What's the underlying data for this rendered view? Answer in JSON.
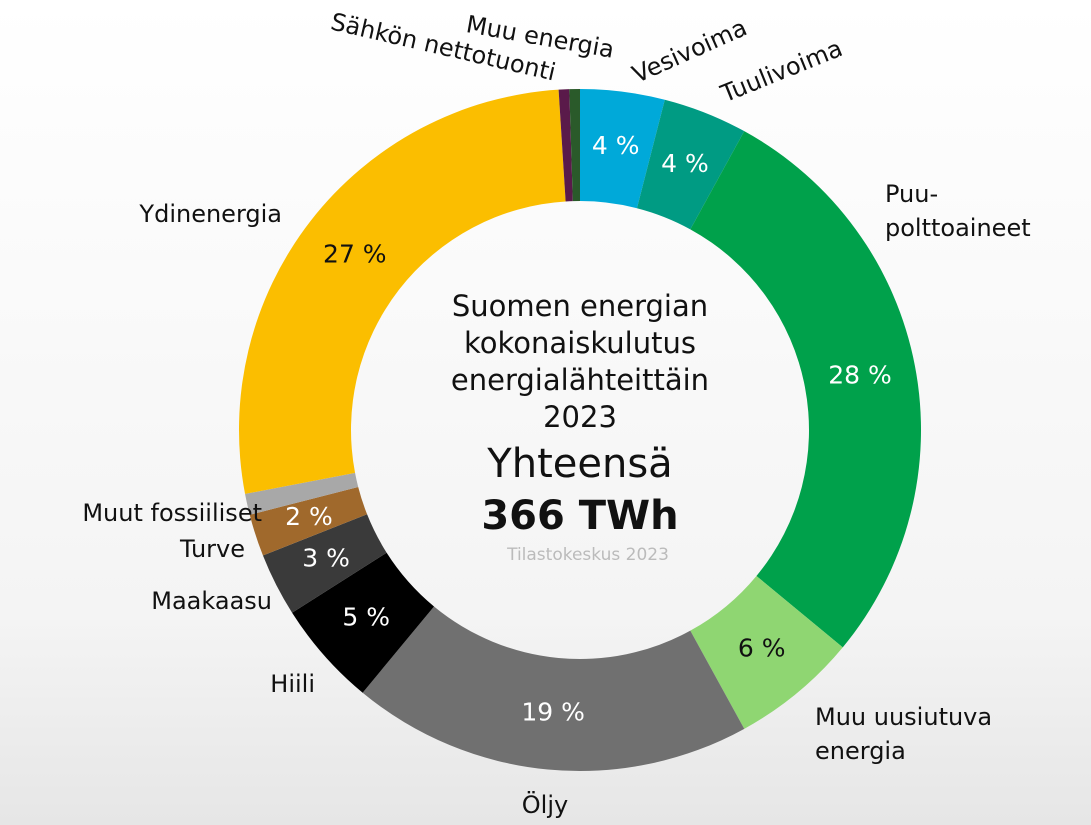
{
  "chart_data": {
    "type": "donut",
    "title": "Suomen energian\nkokonaiskulutus\nenergialähteittäin\n2023",
    "total_label": "Yhteensä",
    "total": "366 TWh",
    "source": "Tilastokeskus 2023",
    "categories": [
      "Vesivoima",
      "Tuulivoima",
      "Puu-\npolttoaineet",
      "Muu uusiutuva\nenergia",
      "Öljy",
      "Hiili",
      "Maakaasu",
      "Turve",
      "Muut fossiiliset",
      "Ydinenergia",
      "Sähkön nettotuonti",
      "Muu energia"
    ],
    "values": [
      4,
      4,
      28,
      6,
      19,
      5,
      3,
      2,
      1,
      27,
      0.5,
      0.5
    ],
    "value_labels": [
      "4 %",
      "4 %",
      "28 %",
      "6 %",
      "19 %",
      "5 %",
      "3 %",
      "2 %",
      null,
      "27 %",
      null,
      null
    ],
    "colors": [
      "#00a9d9",
      "#009b83",
      "#00a14b",
      "#8fd672",
      "#707070",
      "#000000",
      "#3a3a3a",
      "#a0692c",
      "#a8a8a8",
      "#fbbe00",
      "#5a1a4a",
      "#2a5a2a"
    ]
  }
}
